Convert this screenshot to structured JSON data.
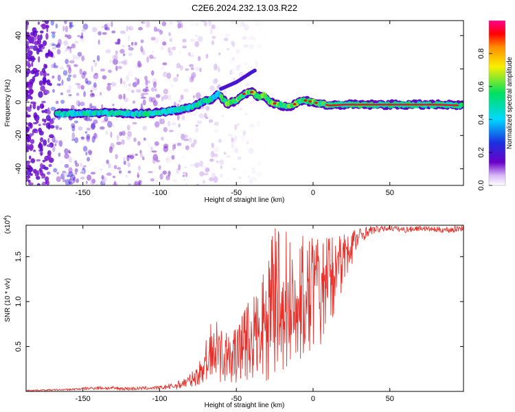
{
  "title": "C2E6.2024.232.13.03.R22",
  "colors": {
    "line": "#e8302a",
    "colormap": [
      "#ffffff",
      "#6a00c8",
      "#1a30e0",
      "#00d8ff",
      "#00e060",
      "#f8f000",
      "#ff8c00",
      "#ff0000",
      "#ff0090"
    ]
  },
  "chart_data": [
    {
      "type": "heatmap",
      "title": "C2E6.2024.232.13.03.R22",
      "xlabel": "Height of straight line (km)",
      "ylabel": "Frequency (Hz)",
      "xlim": [
        -187,
        98
      ],
      "ylim": [
        -50,
        49
      ],
      "xticks": [
        -150,
        -100,
        -50,
        0,
        50
      ],
      "xtick_labels": [
        "-150",
        "-100",
        "-50",
        "0",
        "50"
      ],
      "yticks": [
        -40,
        -20,
        0,
        20,
        40
      ],
      "ytick_labels": [
        "-40",
        "-20",
        "0",
        "20",
        "40"
      ],
      "ridge": {
        "name": "dominant frequency track",
        "x": [
          -167,
          -150,
          -130,
          -110,
          -100,
          -90,
          -80,
          -72,
          -66,
          -62,
          -56,
          -50,
          -45,
          -40,
          -36,
          -32,
          -28,
          -24,
          -20,
          -15,
          -10,
          -5,
          0,
          5,
          10,
          20,
          40,
          60,
          80,
          97
        ],
        "y": [
          -7,
          -6.5,
          -6.5,
          -7,
          -6,
          -5,
          -3,
          0,
          2,
          5,
          -1,
          1,
          5,
          6,
          3,
          4,
          0,
          -1,
          -2,
          -3,
          0,
          1,
          0,
          -1,
          -2,
          -1.5,
          -1.5,
          -1.5,
          -1.5,
          -2
        ]
      },
      "branch": {
        "name": "upper branch",
        "x": [
          -60,
          -50,
          -45,
          -40,
          -38
        ],
        "y": [
          8,
          12,
          15,
          18,
          19
        ]
      },
      "colorbar": {
        "label": "Normalized spectral amplitude",
        "range": [
          0,
          1
        ],
        "ticks": [
          0.0,
          0.2,
          0.4,
          0.6,
          0.8
        ],
        "tick_labels": [
          "0.0",
          "0.2",
          "0.4",
          "0.6",
          "0.8"
        ]
      }
    },
    {
      "type": "line",
      "xlabel": "Height of straight line (km)",
      "ylabel": "SNR (10 * v/v)",
      "scale_label": "(x10",
      "scale_exponent": "4",
      "xlim": [
        -187,
        98
      ],
      "ylim": [
        0,
        1.85
      ],
      "xticks": [
        -150,
        -100,
        -50,
        0,
        50
      ],
      "xtick_labels": [
        "-150",
        "-100",
        "-50",
        "0",
        "50"
      ],
      "yticks": [
        0.5,
        1.0,
        1.5
      ],
      "ytick_labels": [
        "0.5",
        "1.0",
        "1.5"
      ],
      "series": [
        {
          "name": "SNR",
          "x": [
            -187,
            -160,
            -140,
            -120,
            -100,
            -90,
            -80,
            -75,
            -70,
            -65,
            -60,
            -55,
            -50,
            -45,
            -40,
            -35,
            -30,
            -25,
            -20,
            -15,
            -10,
            -5,
            0,
            5,
            10,
            15,
            20,
            25,
            30,
            35,
            40,
            50,
            60,
            70,
            80,
            90,
            97
          ],
          "y": [
            0.01,
            0.02,
            0.04,
            0.03,
            0.04,
            0.06,
            0.12,
            0.18,
            0.3,
            0.45,
            0.35,
            0.3,
            0.35,
            0.5,
            0.6,
            0.55,
            0.8,
            1.0,
            0.9,
            0.85,
            1.0,
            0.9,
            1.0,
            1.05,
            1.2,
            1.3,
            1.45,
            1.6,
            1.72,
            1.78,
            1.8,
            1.82,
            1.8,
            1.82,
            1.8,
            1.8,
            1.82
          ],
          "envelope_high": [
            0.02,
            0.03,
            0.06,
            0.05,
            0.06,
            0.1,
            0.2,
            0.3,
            0.55,
            0.85,
            0.7,
            0.65,
            0.7,
            0.9,
            1.1,
            1.1,
            1.5,
            1.82,
            1.8,
            1.75,
            1.75,
            1.72,
            1.7,
            1.72,
            1.7,
            1.72,
            1.75,
            1.78,
            1.82,
            1.84,
            1.84,
            1.84,
            1.83,
            1.84,
            1.83,
            1.84,
            1.85
          ],
          "envelope_low": [
            0.005,
            0.01,
            0.02,
            0.01,
            0.02,
            0.02,
            0.05,
            0.07,
            0.12,
            0.15,
            0.1,
            0.08,
            0.1,
            0.15,
            0.1,
            0.08,
            0.12,
            0.2,
            0.15,
            0.3,
            0.35,
            0.3,
            0.4,
            0.5,
            0.7,
            0.9,
            1.2,
            1.4,
            1.62,
            1.72,
            1.76,
            1.78,
            1.76,
            1.78,
            1.77,
            1.76,
            1.78
          ]
        }
      ]
    }
  ]
}
